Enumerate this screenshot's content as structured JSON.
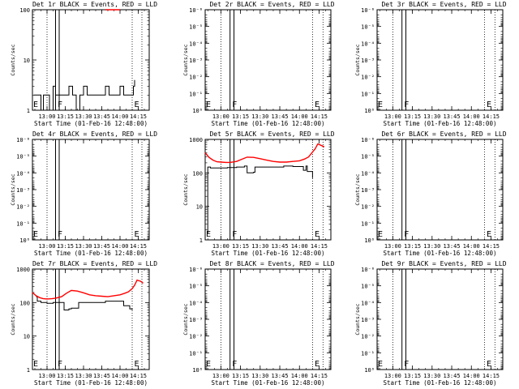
{
  "figure": {
    "x_start": "12:48:00",
    "x_end": "14:24:00",
    "x_axis_label": "Start Time (01-Feb-16 12:48:00)",
    "y_axis_label": "Counts/sec",
    "x_tick_labels": [
      "13:00",
      "13:15",
      "13:30",
      "13:45",
      "14:00",
      "14:15"
    ],
    "x_tick_values": [
      "13:00",
      "13:15",
      "13:30",
      "13:45",
      "14:00",
      "14:15"
    ],
    "dotted_line_times": [
      "13:00",
      "14:10",
      "14:18"
    ],
    "solid_bar_times": [
      "13:07",
      "13:10"
    ],
    "letters": [
      {
        "text": "E",
        "time": "12:48"
      },
      {
        "text": "F",
        "time": "13:08"
      },
      {
        "text": "E",
        "time": "14:11"
      }
    ],
    "colors": {
      "events": "#000000",
      "lld": "#ff0000",
      "background": "#ffffff"
    }
  },
  "chart_data": [
    {
      "type": "line",
      "title": "Det 1r BLACK = Events, RED = LLD",
      "yscale": "log",
      "ylim": [
        1,
        100
      ],
      "y_tick_labels": [
        "1",
        "10",
        "100"
      ],
      "y_tick_values": [
        1,
        10,
        100
      ],
      "series": [
        {
          "name": "Events",
          "color": "#000000",
          "x": [
            "12:49",
            "12:52",
            "12:55",
            "12:57",
            "13:00",
            "13:02",
            "13:05",
            "13:07",
            "13:12",
            "13:15",
            "13:18",
            "13:21",
            "13:24",
            "13:27",
            "13:30",
            "13:33",
            "13:36",
            "13:39",
            "13:42",
            "13:45",
            "13:48",
            "13:51",
            "13:54",
            "13:57",
            "14:00",
            "14:03",
            "14:06",
            "14:09",
            "14:11",
            "14:12"
          ],
          "values": [
            2,
            2,
            1,
            2,
            2,
            1,
            3,
            2,
            2,
            2,
            3,
            2,
            1,
            2,
            3,
            2,
            2,
            2,
            2,
            2,
            3,
            2,
            2,
            2,
            3,
            2,
            2,
            2,
            3,
            4
          ]
        },
        {
          "name": "LLD",
          "color": "#ff0000",
          "x": [
            "13:48",
            "13:54",
            "14:00"
          ],
          "values": [
            100,
            100,
            100
          ]
        }
      ]
    },
    {
      "type": "line",
      "title": "Det 2r BLACK = Events, RED = LLD",
      "yscale": "log",
      "ylim": [
        1,
        1e-06
      ],
      "y_tick_labels": [
        "10⁰",
        "10⁻¹",
        "10⁻²",
        "10⁻³",
        "10⁻⁴",
        "10⁻⁵",
        "10⁻⁶"
      ],
      "y_tick_values": [
        1,
        0.1,
        0.01,
        0.001,
        0.0001,
        1e-05,
        1e-06
      ],
      "series": []
    },
    {
      "type": "line",
      "title": "Det 3r BLACK = Events, RED = LLD",
      "yscale": "log",
      "ylim": [
        1,
        1e-06
      ],
      "y_tick_labels": [
        "10⁰",
        "10⁻¹",
        "10⁻²",
        "10⁻³",
        "10⁻⁴",
        "10⁻⁵",
        "10⁻⁶"
      ],
      "y_tick_values": [
        1,
        0.1,
        0.01,
        0.001,
        0.0001,
        1e-05,
        1e-06
      ],
      "series": []
    },
    {
      "type": "line",
      "title": "Det 4r BLACK = Events, RED = LLD",
      "yscale": "log",
      "ylim": [
        1,
        1e-06
      ],
      "y_tick_labels": [
        "10⁰",
        "10⁻¹",
        "10⁻²",
        "10⁻³",
        "10⁻⁴",
        "10⁻⁵",
        "10⁻⁶"
      ],
      "y_tick_values": [
        1,
        0.1,
        0.01,
        0.001,
        0.0001,
        1e-05,
        1e-06
      ],
      "series": []
    },
    {
      "type": "line",
      "title": "Det 5r BLACK = Events, RED = LLD",
      "yscale": "log",
      "ylim": [
        1,
        1000
      ],
      "y_tick_labels": [
        "1",
        "10",
        "100",
        "1000"
      ],
      "y_tick_values": [
        1,
        10,
        100,
        1000
      ],
      "series": [
        {
          "name": "Events",
          "color": "#000000",
          "x": [
            "12:50",
            "12:50",
            "12:52",
            "12:55",
            "13:00",
            "13:05",
            "13:12",
            "13:15",
            "13:18",
            "13:20",
            "13:25",
            "13:26",
            "13:30",
            "13:35",
            "13:42",
            "13:46",
            "13:48",
            "13:55",
            "14:00",
            "14:03",
            "14:05",
            "14:06",
            "14:08",
            "14:10"
          ],
          "values": [
            1.5,
            150,
            140,
            140,
            140,
            145,
            150,
            150,
            160,
            100,
            105,
            150,
            150,
            150,
            150,
            150,
            160,
            155,
            155,
            120,
            160,
            110,
            110,
            70
          ]
        },
        {
          "name": "LLD",
          "color": "#ff0000",
          "x": [
            "12:48",
            "12:51",
            "12:54",
            "12:57",
            "13:00",
            "13:04",
            "13:07",
            "13:12",
            "13:16",
            "13:20",
            "13:25",
            "13:30",
            "13:35",
            "13:40",
            "13:45",
            "13:50",
            "13:55",
            "14:00",
            "14:04",
            "14:07",
            "14:10",
            "14:12",
            "14:14",
            "14:17",
            "14:19"
          ],
          "values": [
            400,
            290,
            240,
            215,
            210,
            205,
            205,
            220,
            255,
            295,
            290,
            265,
            240,
            220,
            210,
            210,
            220,
            230,
            260,
            300,
            420,
            520,
            730,
            650,
            600
          ]
        }
      ]
    },
    {
      "type": "line",
      "title": "Det 6r BLACK = Events, RED = LLD",
      "yscale": "log",
      "ylim": [
        1,
        1e-06
      ],
      "y_tick_labels": [
        "10⁰",
        "10⁻¹",
        "10⁻²",
        "10⁻³",
        "10⁻⁴",
        "10⁻⁵",
        "10⁻⁶"
      ],
      "y_tick_values": [
        1,
        0.1,
        0.01,
        0.001,
        0.0001,
        1e-05,
        1e-06
      ],
      "series": []
    },
    {
      "type": "line",
      "title": "Det 7r BLACK = Events, RED = LLD",
      "yscale": "log",
      "ylim": [
        1,
        1000
      ],
      "y_tick_labels": [
        "1",
        "10",
        "100",
        "1000"
      ],
      "y_tick_values": [
        1,
        10,
        100,
        1000
      ],
      "series": [
        {
          "name": "Events",
          "color": "#000000",
          "x": [
            "12:51",
            "12:52",
            "12:55",
            "13:00",
            "13:05",
            "13:07",
            "13:12",
            "13:14",
            "13:18",
            "13:20",
            "13:25",
            "13:26",
            "13:30",
            "13:40",
            "13:45",
            "13:48",
            "13:55",
            "14:00",
            "14:03",
            "14:05",
            "14:08",
            "14:10"
          ],
          "values": [
            150,
            110,
            100,
            95,
            100,
            100,
            100,
            60,
            65,
            68,
            68,
            100,
            100,
            100,
            100,
            110,
            110,
            110,
            80,
            80,
            65,
            60
          ]
        },
        {
          "name": "LLD",
          "color": "#ff0000",
          "x": [
            "12:48",
            "12:51",
            "12:54",
            "12:57",
            "13:00",
            "13:04",
            "13:07",
            "13:12",
            "13:16",
            "13:20",
            "13:25",
            "13:30",
            "13:35",
            "13:40",
            "13:45",
            "13:50",
            "13:55",
            "14:00",
            "14:04",
            "14:07",
            "14:10",
            "14:12",
            "14:14",
            "14:17",
            "14:19"
          ],
          "values": [
            200,
            160,
            140,
            130,
            128,
            130,
            135,
            150,
            190,
            230,
            220,
            195,
            170,
            160,
            155,
            150,
            160,
            170,
            190,
            210,
            260,
            330,
            470,
            430,
            380
          ]
        }
      ]
    },
    {
      "type": "line",
      "title": "Det 8r BLACK = Events, RED = LLD",
      "yscale": "log",
      "ylim": [
        1,
        1e-06
      ],
      "y_tick_labels": [
        "10⁰",
        "10⁻¹",
        "10⁻²",
        "10⁻³",
        "10⁻⁴",
        "10⁻⁵",
        "10⁻⁶"
      ],
      "y_tick_values": [
        1,
        0.1,
        0.01,
        0.001,
        0.0001,
        1e-05,
        1e-06
      ],
      "series": []
    },
    {
      "type": "line",
      "title": "Det 9r BLACK = Events, RED = LLD",
      "yscale": "log",
      "ylim": [
        1,
        1e-06
      ],
      "y_tick_labels": [
        "10⁰",
        "10⁻¹",
        "10⁻²",
        "10⁻³",
        "10⁻⁴",
        "10⁻⁵",
        "10⁻⁶"
      ],
      "y_tick_values": [
        1,
        0.1,
        0.01,
        0.001,
        0.0001,
        1e-05,
        1e-06
      ],
      "series": []
    }
  ]
}
